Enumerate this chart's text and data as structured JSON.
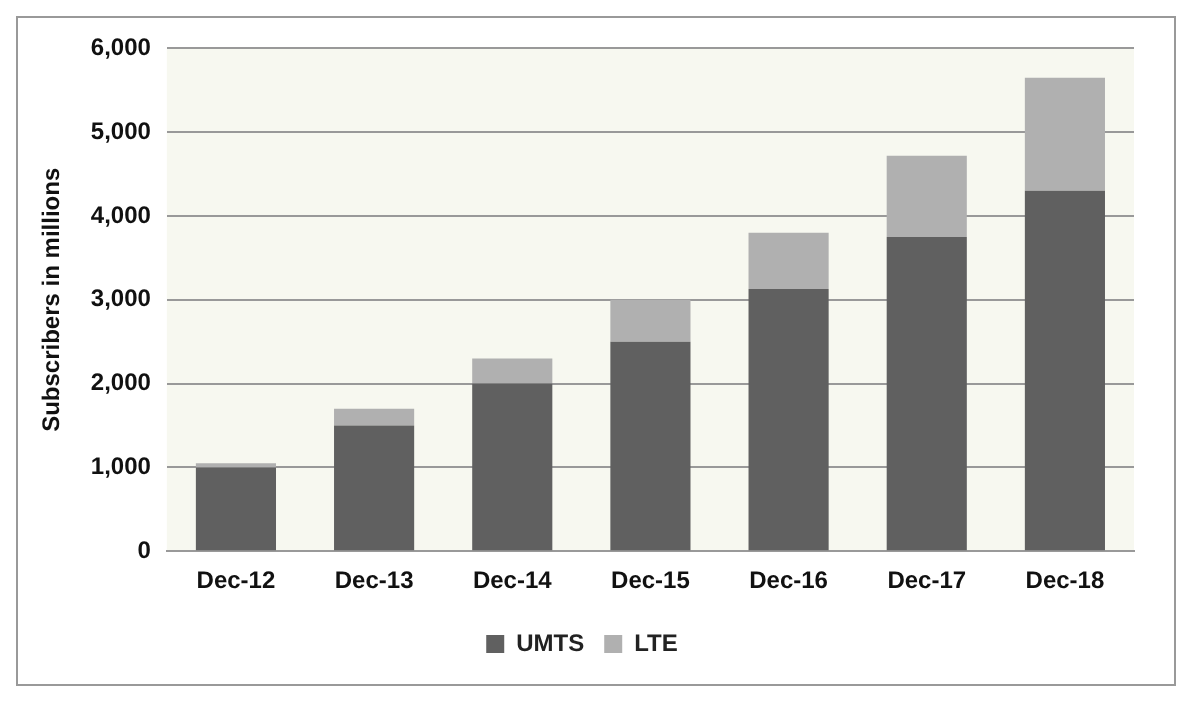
{
  "chart_data": {
    "type": "bar",
    "ylabel": "Subscribers in millions",
    "categories": [
      "Dec-12",
      "Dec-13",
      "Dec-14",
      "Dec-15",
      "Dec-16",
      "Dec-17",
      "Dec-18"
    ],
    "series": [
      {
        "name": "UMTS",
        "color": "#606060",
        "values": [
          1000,
          1500,
          2000,
          2500,
          3130,
          3750,
          4300
        ]
      },
      {
        "name": "LTE",
        "color": "#b0b0b0",
        "values": [
          50,
          200,
          300,
          500,
          670,
          970,
          1350
        ]
      }
    ],
    "stacked": true,
    "ylim": [
      0,
      6000
    ],
    "yticks": [
      0,
      {
        "value": 1000,
        "label": "1,000"
      },
      {
        "value": 2000,
        "label": "2,000"
      },
      {
        "value": 3000,
        "label": "3,000"
      },
      {
        "value": 4000,
        "label": "4,000"
      },
      {
        "value": 5000,
        "label": "5,000"
      },
      {
        "value": 6000,
        "label": "6,000"
      }
    ],
    "grid": "y",
    "legend": "bottom"
  }
}
